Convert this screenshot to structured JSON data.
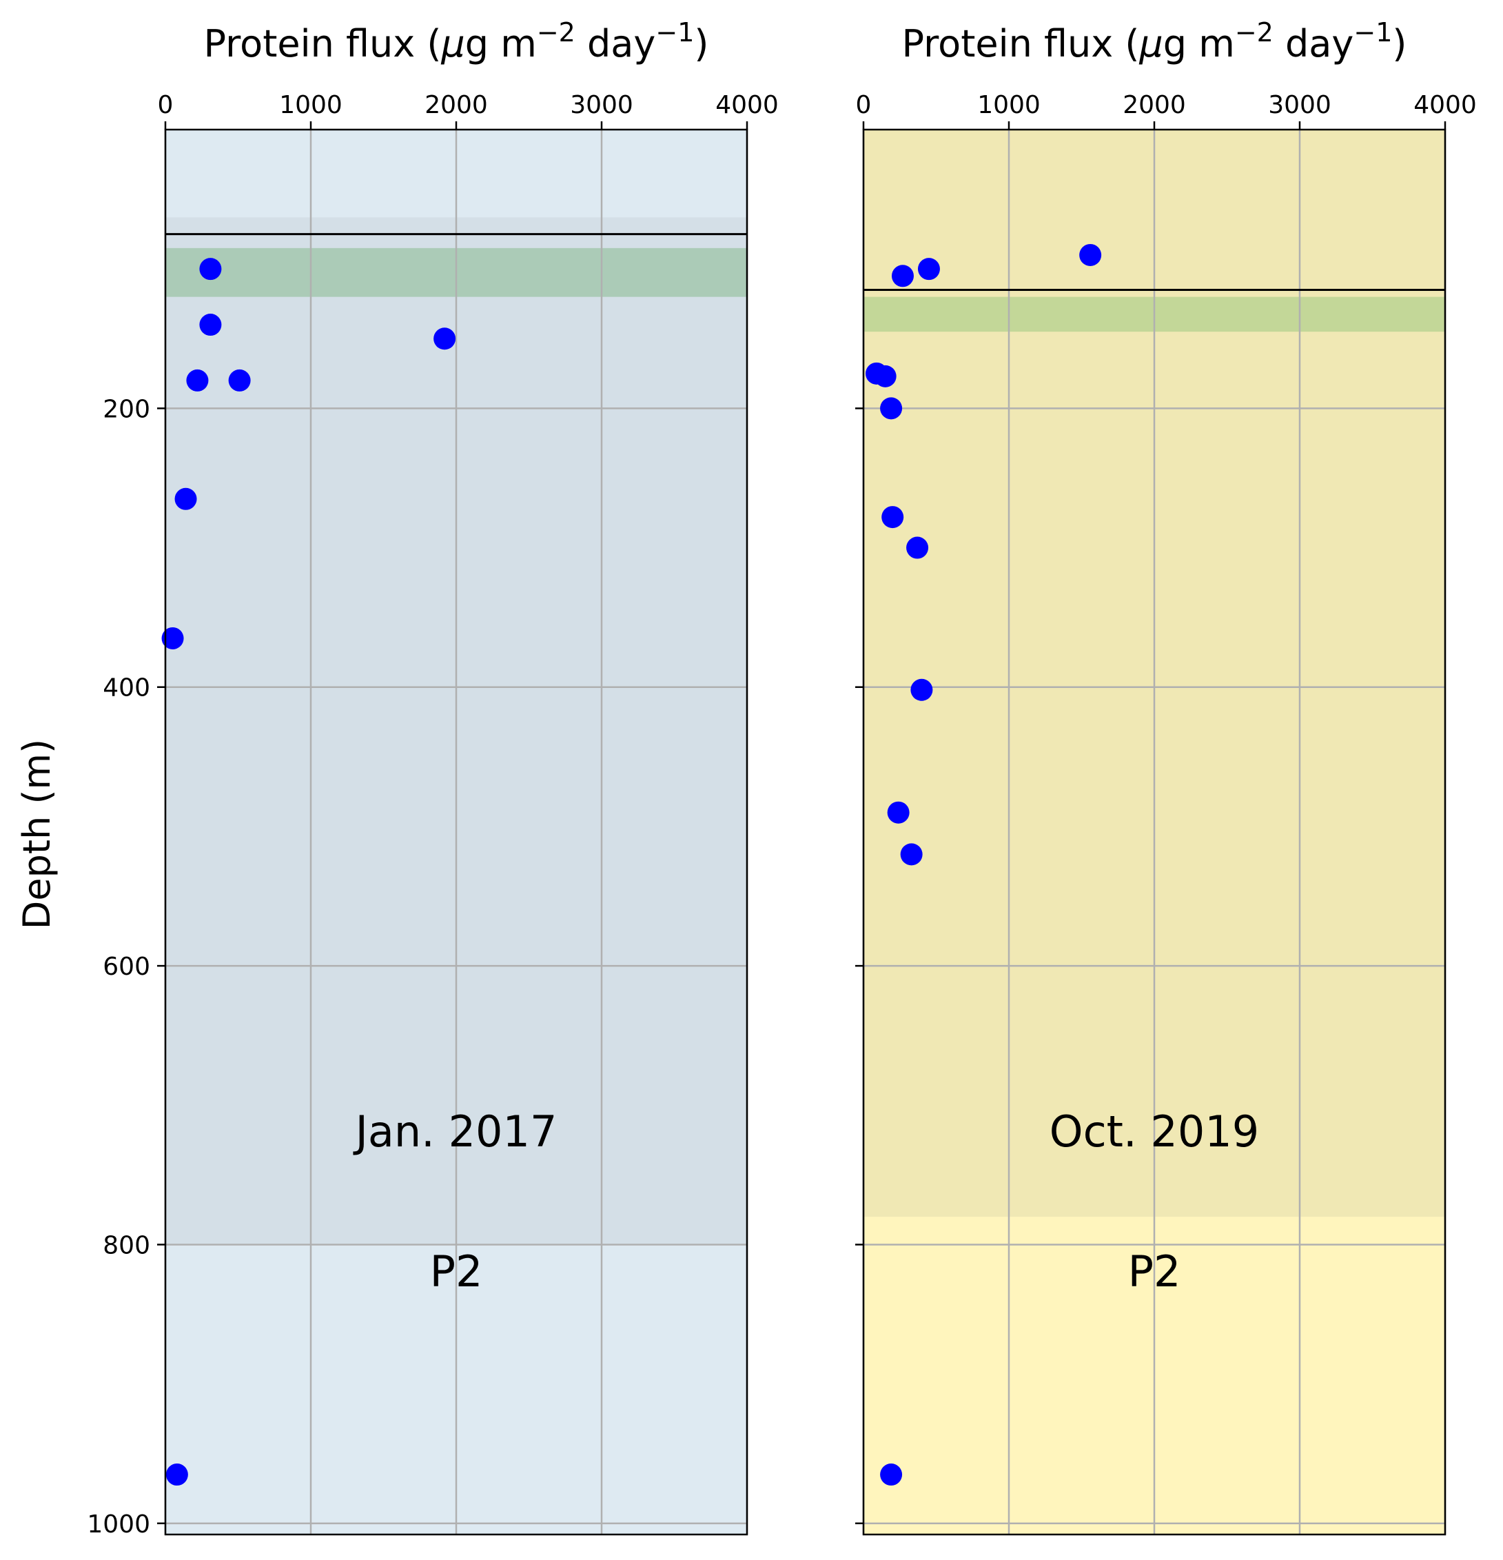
{
  "chart_data": [
    {
      "type": "scatter",
      "title": "",
      "xlabel_parts": [
        "Protein flux (",
        "μ",
        "g m",
        "−2",
        " day",
        "−1",
        ")"
      ],
      "ylabel": "Depth (m)",
      "xlim": [
        0,
        4000
      ],
      "ylim": [
        1008,
        0
      ],
      "xticks": [
        "0",
        "1000",
        "2000",
        "3000",
        "4000"
      ],
      "yticks": [
        "200",
        "400",
        "600",
        "800",
        "1000"
      ],
      "grid": true,
      "annotations": [
        "Jan. 2017",
        "P2"
      ],
      "background_color": "#deeaf2",
      "inner_band": {
        "depth_range": [
          63,
          800
        ],
        "color": "#d4dfe7"
      },
      "green_band": {
        "depth_range": [
          85,
          120
        ],
        "color": "#abcbb7"
      },
      "mixed_layer_depth": 75,
      "marker_color": "#0000ff",
      "points": [
        {
          "x": 310,
          "y": 100
        },
        {
          "x": 310,
          "y": 140
        },
        {
          "x": 1920,
          "y": 150
        },
        {
          "x": 220,
          "y": 180
        },
        {
          "x": 510,
          "y": 180
        },
        {
          "x": 140,
          "y": 265
        },
        {
          "x": 50,
          "y": 365
        },
        {
          "x": 80,
          "y": 965
        }
      ]
    },
    {
      "type": "scatter",
      "title": "",
      "xlabel_parts": [
        "Protein flux (",
        "μ",
        "g m",
        "−2",
        " day",
        "−1",
        ")"
      ],
      "ylabel": "",
      "xlim": [
        0,
        4000
      ],
      "ylim": [
        1008,
        0
      ],
      "xticks": [
        "0",
        "1000",
        "2000",
        "3000",
        "4000"
      ],
      "yticks": [
        "200",
        "400",
        "600",
        "800",
        "1000"
      ],
      "grid": true,
      "annotations": [
        "Oct. 2019",
        "P2"
      ],
      "background_color": "#fff5bd",
      "inner_band": {
        "depth_range": [
          0,
          780
        ],
        "color": "#f0e8b4"
      },
      "green_band": {
        "depth_range": [
          120,
          145
        ],
        "color": "#c3d798"
      },
      "mixed_layer_depth": 115,
      "marker_color": "#0000ff",
      "points": [
        {
          "x": 1560,
          "y": 90
        },
        {
          "x": 450,
          "y": 100
        },
        {
          "x": 270,
          "y": 105
        },
        {
          "x": 90,
          "y": 175
        },
        {
          "x": 150,
          "y": 177
        },
        {
          "x": 190,
          "y": 200
        },
        {
          "x": 200,
          "y": 278
        },
        {
          "x": 370,
          "y": 300
        },
        {
          "x": 400,
          "y": 402
        },
        {
          "x": 240,
          "y": 490
        },
        {
          "x": 330,
          "y": 520
        },
        {
          "x": 190,
          "y": 965
        }
      ]
    }
  ]
}
